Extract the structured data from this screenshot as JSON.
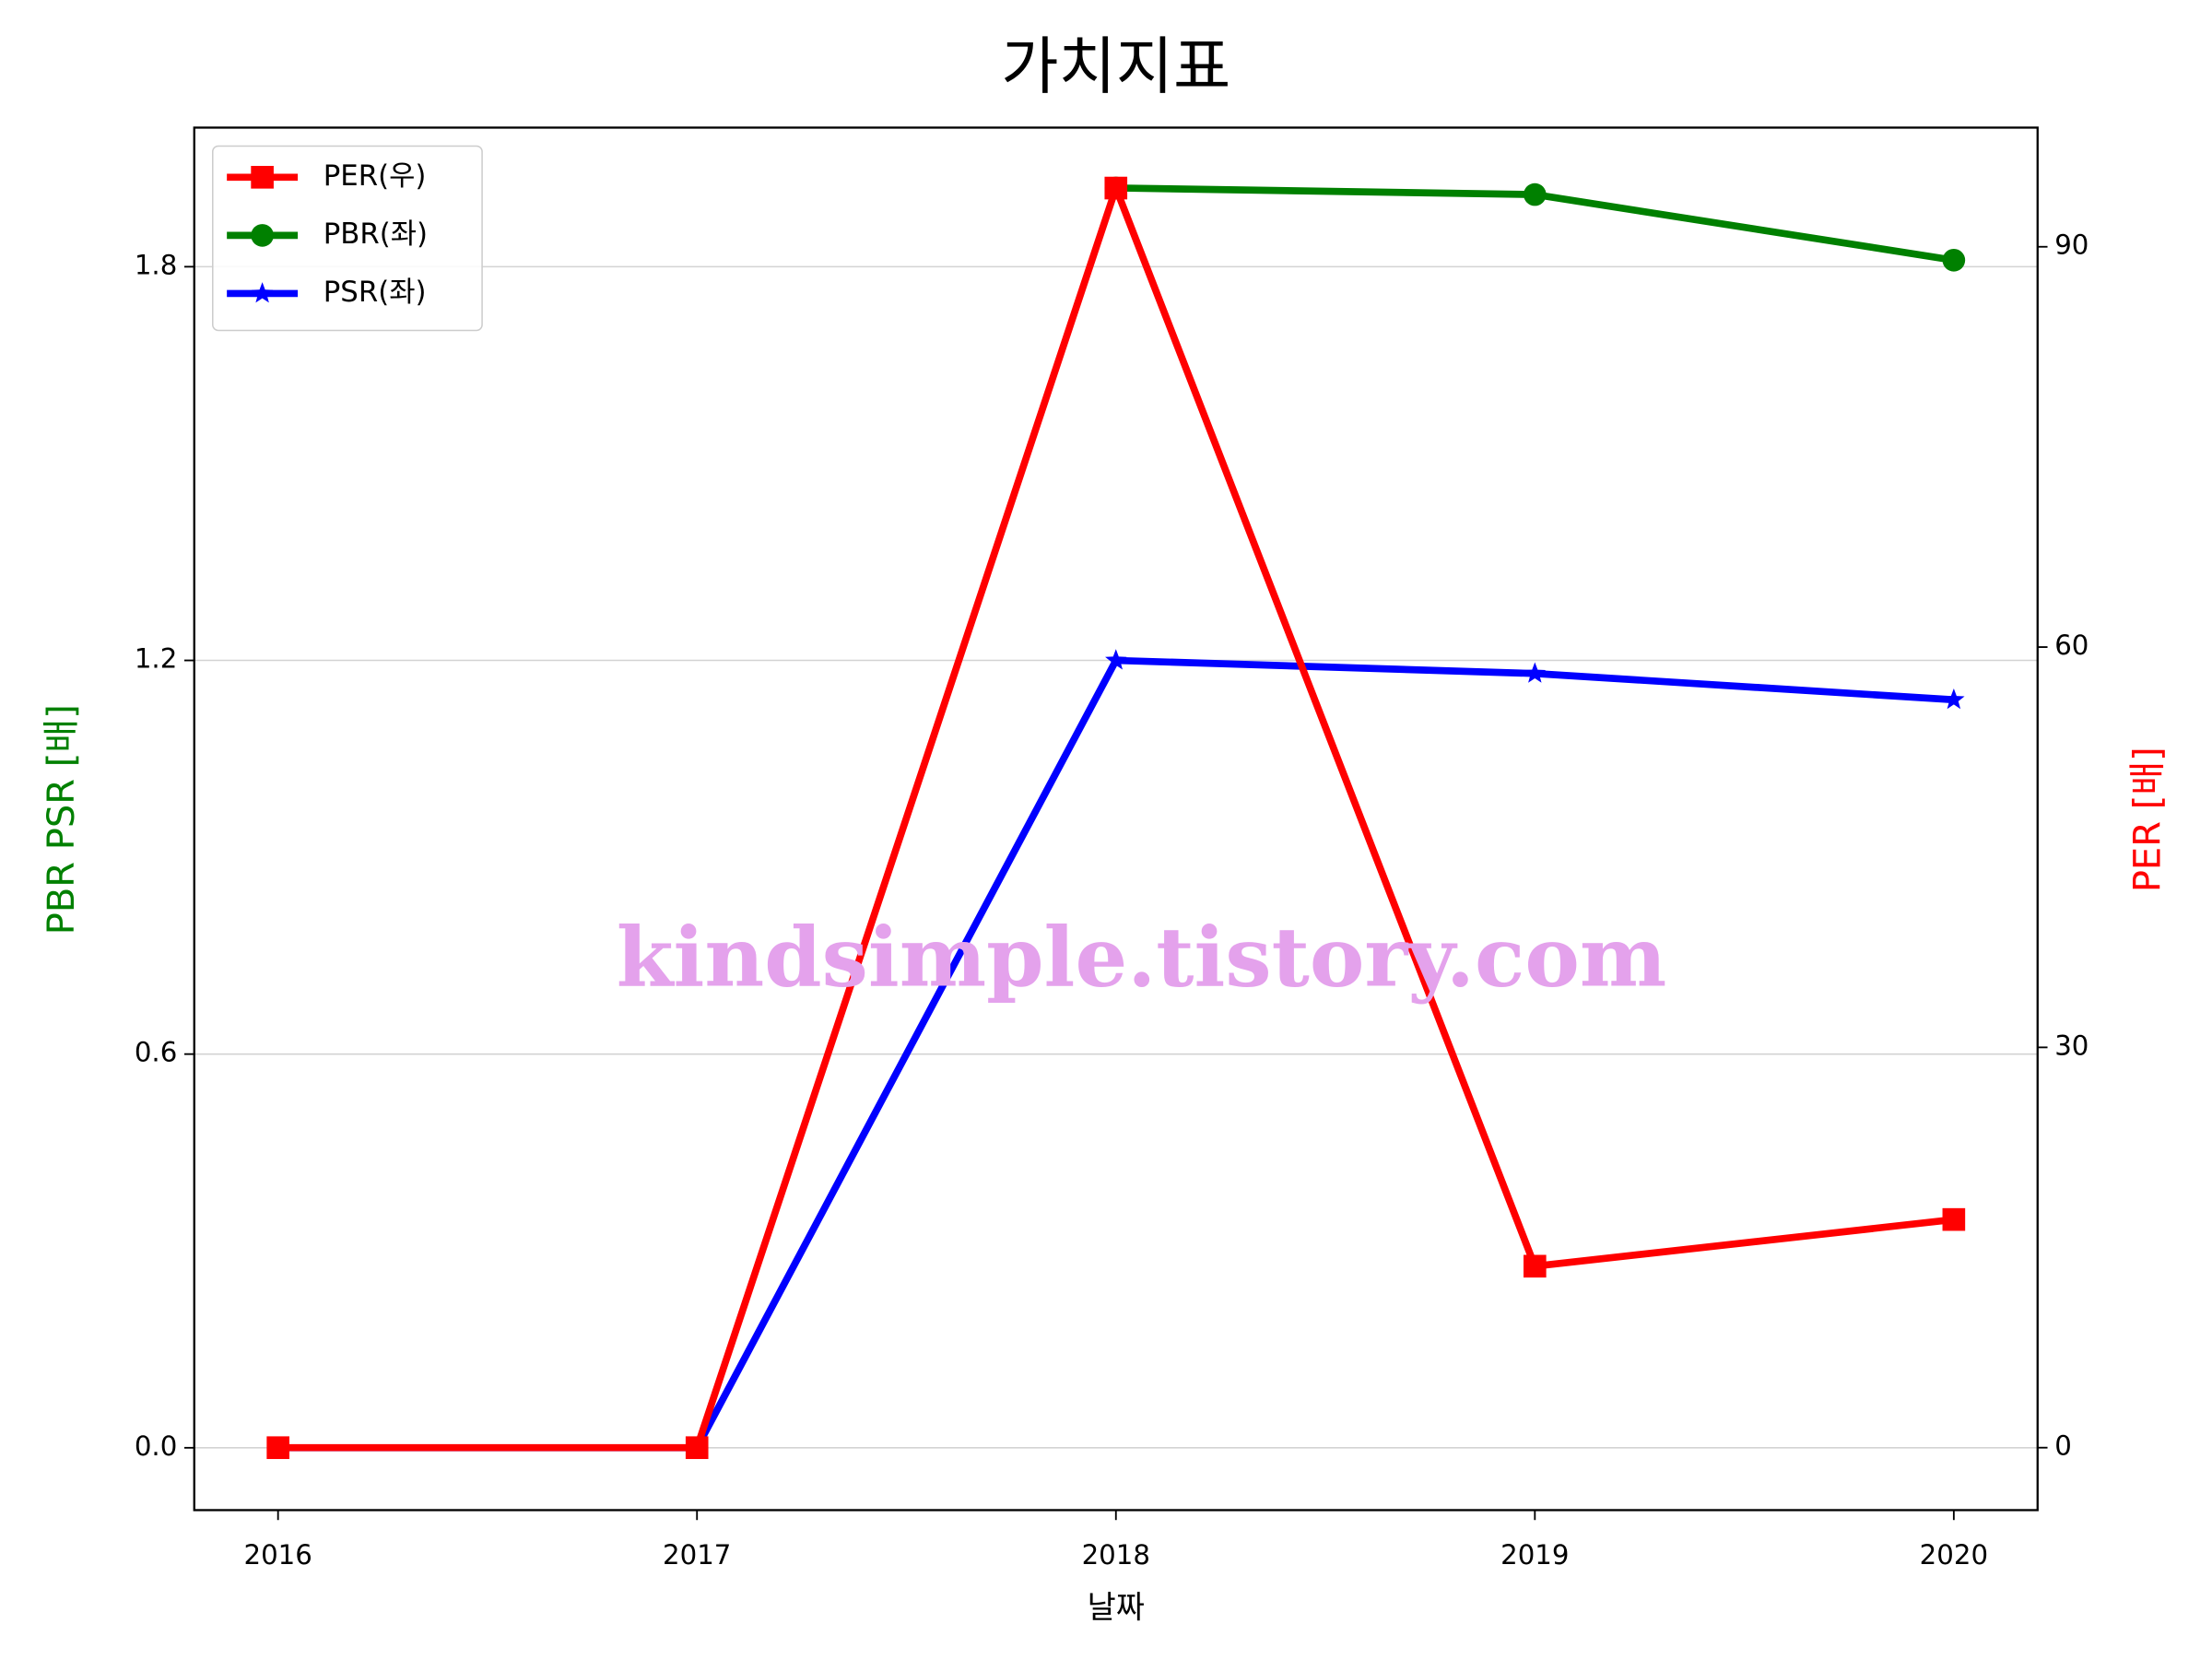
{
  "chart_data": {
    "type": "line",
    "title": "가치지표",
    "xlabel": "날짜",
    "ylabel": "PBR PSR [배]",
    "ylabel_color": "#008000",
    "y2label": "PER [배]",
    "y2label_color": "#ff0000",
    "x": [
      2016,
      2017,
      2018,
      2019,
      2020
    ],
    "series": [
      {
        "name": "PER(우)",
        "color": "#ff0000",
        "marker": "square",
        "axis": "y2",
        "values": [
          0,
          0,
          94.4,
          13.6,
          17.1
        ]
      },
      {
        "name": "PBR(좌)",
        "color": "#008000",
        "marker": "circle",
        "values": [
          null,
          null,
          1.92,
          1.91,
          1.81
        ]
      },
      {
        "name": "PSR(좌)",
        "color": "#0000ff",
        "marker": "star",
        "values": [
          0,
          0,
          1.2,
          1.18,
          1.14
        ]
      }
    ],
    "xlim": [
      2015.8,
      2020.2
    ],
    "xticks": [
      2016,
      2017,
      2018,
      2019,
      2020
    ],
    "ylim": [
      -0.095,
      2.012
    ],
    "yticks": [
      {
        "value": 0,
        "label": "0.0"
      },
      0.6,
      1.2,
      1.8
    ],
    "y2lim": [
      -4.68,
      98.93
    ],
    "y2ticks": [
      0,
      30,
      60,
      90
    ],
    "grid": true,
    "legend": "upper left",
    "annotation": "kindsimple.tistory.com"
  }
}
